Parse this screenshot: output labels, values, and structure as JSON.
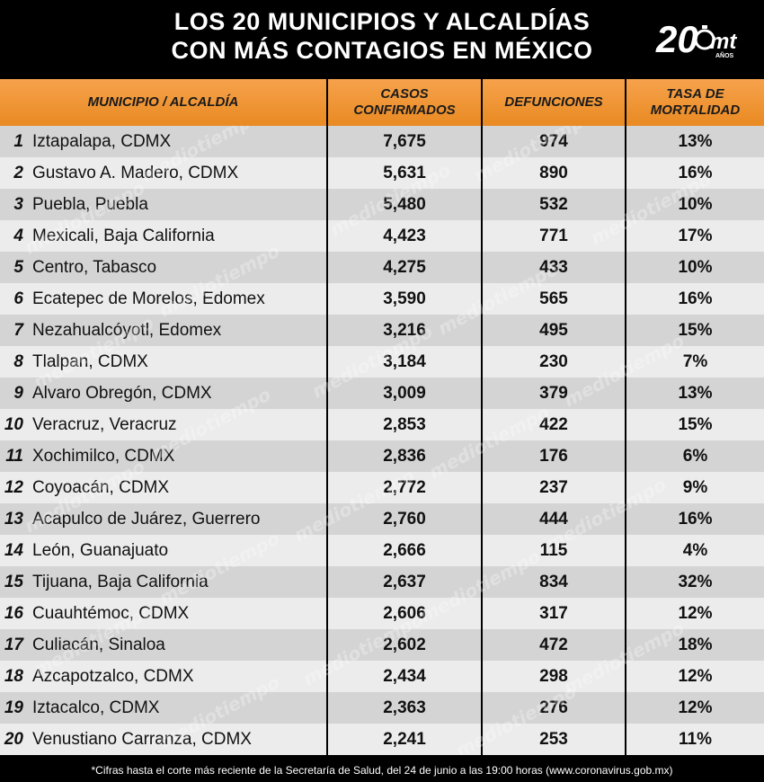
{
  "title": {
    "line1": "LOS 20 MUNICIPIOS Y ALCALDÍAS",
    "line2": "CON MÁS CONTAGIOS EN MÉXICO"
  },
  "logo": {
    "number": "20",
    "letters": "mt",
    "sub": "AÑOS"
  },
  "columns": {
    "municipio": "MUNICIPIO / ALCALDÍA",
    "casos_1": "CASOS",
    "casos_2": "CONFIRMADOS",
    "defunciones": "DEFUNCIONES",
    "tasa_1": "TASA DE",
    "tasa_2": "MORTALIDAD"
  },
  "rows": [
    {
      "rank": "1",
      "name": "Iztapalapa, CDMX",
      "casos": "7,675",
      "defunciones": "974",
      "tasa": "13%"
    },
    {
      "rank": "2",
      "name": "Gustavo A. Madero, CDMX",
      "casos": "5,631",
      "defunciones": "890",
      "tasa": "16%"
    },
    {
      "rank": "3",
      "name": "Puebla, Puebla",
      "casos": "5,480",
      "defunciones": "532",
      "tasa": "10%"
    },
    {
      "rank": "4",
      "name": "Mexicali, Baja California",
      "casos": "4,423",
      "defunciones": "771",
      "tasa": "17%"
    },
    {
      "rank": "5",
      "name": "Centro, Tabasco",
      "casos": "4,275",
      "defunciones": "433",
      "tasa": "10%"
    },
    {
      "rank": "6",
      "name": "Ecatepec de Morelos, Edomex",
      "casos": "3,590",
      "defunciones": "565",
      "tasa": "16%"
    },
    {
      "rank": "7",
      "name": "Nezahualcóyotl, Edomex",
      "casos": "3,216",
      "defunciones": "495",
      "tasa": "15%"
    },
    {
      "rank": "8",
      "name": "Tlalpan, CDMX",
      "casos": "3,184",
      "defunciones": "230",
      "tasa": "7%"
    },
    {
      "rank": "9",
      "name": "Alvaro Obregón, CDMX",
      "casos": "3,009",
      "defunciones": "379",
      "tasa": "13%"
    },
    {
      "rank": "10",
      "name": "Veracruz, Veracruz",
      "casos": "2,853",
      "defunciones": "422",
      "tasa": "15%"
    },
    {
      "rank": "11",
      "name": "Xochimilco, CDMX",
      "casos": "2,836",
      "defunciones": "176",
      "tasa": "6%"
    },
    {
      "rank": "12",
      "name": "Coyoacán, CDMX",
      "casos": "2,772",
      "defunciones": "237",
      "tasa": "9%"
    },
    {
      "rank": "13",
      "name": "Acapulco de Juárez, Guerrero",
      "casos": "2,760",
      "defunciones": "444",
      "tasa": "16%"
    },
    {
      "rank": "14",
      "name": "León, Guanajuato",
      "casos": "2,666",
      "defunciones": "115",
      "tasa": "4%"
    },
    {
      "rank": "15",
      "name": "Tijuana, Baja California",
      "casos": "2,637",
      "defunciones": "834",
      "tasa": "32%"
    },
    {
      "rank": "16",
      "name": "Cuauhtémoc, CDMX",
      "casos": "2,606",
      "defunciones": "317",
      "tasa": "12%"
    },
    {
      "rank": "17",
      "name": "Culiacán, Sinaloa",
      "casos": "2,602",
      "defunciones": "472",
      "tasa": "18%"
    },
    {
      "rank": "18",
      "name": "Azcapotzalco, CDMX",
      "casos": "2,434",
      "defunciones": "298",
      "tasa": "12%"
    },
    {
      "rank": "19",
      "name": "Iztacalco, CDMX",
      "casos": "2,363",
      "defunciones": "276",
      "tasa": "12%"
    },
    {
      "rank": "20",
      "name": "Venustiano Carranza, CDMX",
      "casos": "2,241",
      "defunciones": "253",
      "tasa": "11%"
    }
  ],
  "watermark": "mediotiempo",
  "footnote": "*Cifras hasta el corte más reciente de la Secretaría de Salud, del 24 de junio a las 19:00 horas (www.coronavirus.gob.mx)",
  "colors": {
    "header_orange": "#f29a3c",
    "row_dark": "#d4d4d4",
    "row_light": "#ececec",
    "background": "#000000"
  }
}
